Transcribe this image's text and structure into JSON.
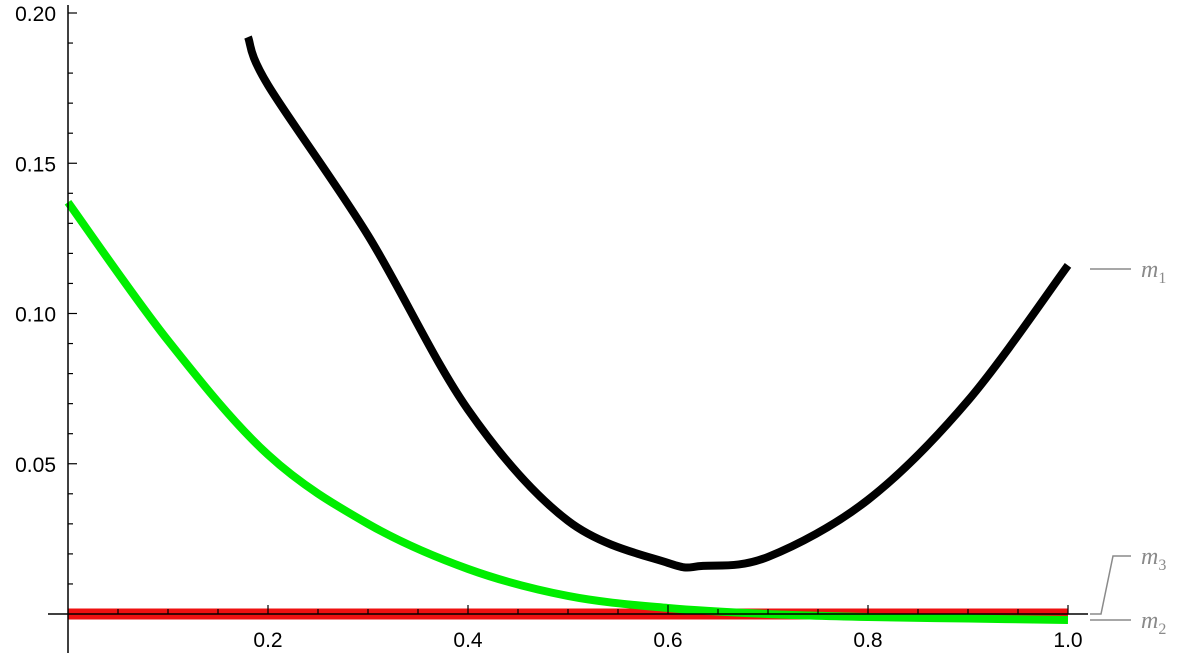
{
  "chart_data": {
    "type": "line",
    "title": "",
    "xlabel": "",
    "ylabel": "",
    "xlim": [
      0,
      1.0
    ],
    "ylim": [
      -0.01,
      0.2
    ],
    "grid": false,
    "x_ticks": [
      {
        "value": 0.2,
        "label": "0.2"
      },
      {
        "value": 0.4,
        "label": "0.4"
      },
      {
        "value": 0.6,
        "label": "0.6"
      },
      {
        "value": 0.8,
        "label": "0.8"
      },
      {
        "value": 1.0,
        "label": "1.0"
      }
    ],
    "y_ticks": [
      {
        "value": 0.05,
        "label": "0.05"
      },
      {
        "value": 0.1,
        "label": "0.10"
      },
      {
        "value": 0.15,
        "label": "0.15"
      },
      {
        "value": 0.2,
        "label": "0.20"
      }
    ],
    "series": [
      {
        "name": "m1",
        "label_main": "m",
        "label_sub": "1",
        "color": "#000000",
        "x": [
          0.18,
          0.2,
          0.3,
          0.4,
          0.5,
          0.6,
          0.635,
          0.7,
          0.8,
          0.9,
          1.0
        ],
        "y": [
          0.192,
          0.176,
          0.126,
          0.068,
          0.031,
          0.017,
          0.016,
          0.019,
          0.038,
          0.071,
          0.116
        ]
      },
      {
        "name": "m3",
        "label_main": "m",
        "label_sub": "3",
        "color": "#00ee00",
        "x": [
          0.0,
          0.1,
          0.2,
          0.3,
          0.4,
          0.5,
          0.6,
          0.7,
          0.8,
          0.9,
          1.0
        ],
        "y": [
          0.137,
          0.091,
          0.053,
          0.03,
          0.015,
          0.006,
          0.002,
          0.0,
          -0.001,
          -0.0015,
          -0.002
        ]
      },
      {
        "name": "m2",
        "label_main": "m",
        "label_sub": "2",
        "color": "#ee1111",
        "x": [
          0.0,
          1.0
        ],
        "y": [
          0.0,
          0.0
        ]
      }
    ]
  }
}
